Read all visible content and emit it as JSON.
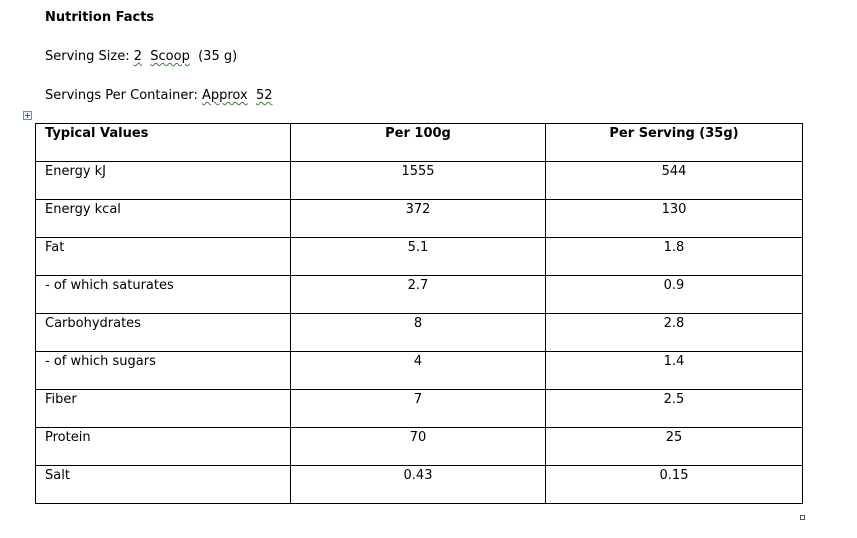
{
  "document": {
    "title": "Nutrition Facts",
    "serving_size": {
      "label": "Serving Size:",
      "qty": "2",
      "unit": "Scoop",
      "weight": "(35 g)"
    },
    "servings_per_container": {
      "label": "Servings Per Container:",
      "value": "Approx",
      "count": "52"
    }
  },
  "table": {
    "headers": [
      "Typical Values",
      "Per 100g",
      "Per Serving (35g)"
    ],
    "rows": [
      [
        "Energy kJ",
        "1555",
        "544"
      ],
      [
        "Energy kcal",
        "372",
        "130"
      ],
      [
        "Fat",
        "5.1",
        "1.8"
      ],
      [
        "- of which saturates",
        "2.7",
        "0.9"
      ],
      [
        "Carbohydrates",
        "8",
        "2.8"
      ],
      [
        "- of which sugars",
        "4",
        "1.4"
      ],
      [
        "Fiber",
        "7",
        "2.5"
      ],
      [
        "Protein",
        "70",
        "25"
      ],
      [
        "Salt",
        "0.43",
        "0.15"
      ]
    ]
  }
}
